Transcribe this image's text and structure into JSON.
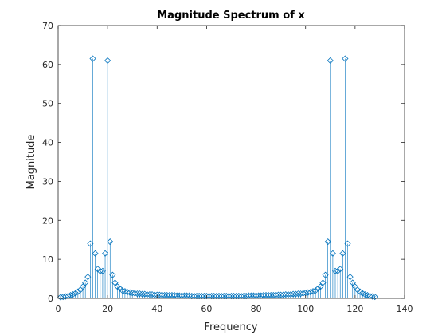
{
  "chart_data": {
    "type": "stem",
    "title": "Magnitude Spectrum of x",
    "xlabel": "Frequency",
    "ylabel": "Magnitude",
    "xlim": [
      0,
      140
    ],
    "ylim": [
      0,
      70
    ],
    "xticks": [
      0,
      20,
      40,
      60,
      80,
      100,
      120,
      140
    ],
    "yticks": [
      0,
      10,
      20,
      30,
      40,
      50,
      60,
      70
    ],
    "xtick_labels": [
      "0",
      "20",
      "40",
      "60",
      "80",
      "100",
      "120",
      "140"
    ],
    "ytick_labels": [
      "0",
      "10",
      "20",
      "30",
      "40",
      "50",
      "60",
      "70"
    ],
    "grid": false,
    "box": true,
    "marker": "diamond",
    "color": "#0072BD",
    "x": [
      1,
      2,
      3,
      4,
      5,
      6,
      7,
      8,
      9,
      10,
      11,
      12,
      13,
      14,
      15,
      16,
      17,
      18,
      19,
      20,
      21,
      22,
      23,
      24,
      25,
      26,
      27,
      28,
      29,
      30,
      31,
      32,
      33,
      34,
      35,
      36,
      37,
      38,
      39,
      40,
      41,
      42,
      43,
      44,
      45,
      46,
      47,
      48,
      49,
      50,
      51,
      52,
      53,
      54,
      55,
      56,
      57,
      58,
      59,
      60,
      61,
      62,
      63,
      64,
      65,
      66,
      67,
      68,
      69,
      70,
      71,
      72,
      73,
      74,
      75,
      76,
      77,
      78,
      79,
      80,
      81,
      82,
      83,
      84,
      85,
      86,
      87,
      88,
      89,
      90,
      91,
      92,
      93,
      94,
      95,
      96,
      97,
      98,
      99,
      100,
      101,
      102,
      103,
      104,
      105,
      106,
      107,
      108,
      109,
      110,
      111,
      112,
      113,
      114,
      115,
      116,
      117,
      118,
      119,
      120,
      121,
      122,
      123,
      124,
      125,
      126,
      127,
      128
    ],
    "values": [
      0.3,
      0.4,
      0.5,
      0.6,
      0.8,
      1.0,
      1.3,
      1.7,
      2.2,
      3.0,
      4.0,
      5.5,
      14.0,
      61.5,
      11.5,
      7.5,
      7.0,
      7.0,
      11.5,
      61.0,
      14.5,
      6.0,
      4.0,
      3.0,
      2.5,
      2.0,
      1.8,
      1.6,
      1.5,
      1.4,
      1.3,
      1.2,
      1.2,
      1.1,
      1.1,
      1.0,
      1.0,
      1.0,
      0.9,
      0.9,
      0.9,
      0.9,
      0.8,
      0.8,
      0.8,
      0.8,
      0.8,
      0.7,
      0.7,
      0.7,
      0.7,
      0.7,
      0.7,
      0.6,
      0.6,
      0.6,
      0.6,
      0.6,
      0.6,
      0.6,
      0.6,
      0.6,
      0.6,
      0.6,
      0.6,
      0.6,
      0.6,
      0.6,
      0.6,
      0.6,
      0.6,
      0.6,
      0.6,
      0.6,
      0.6,
      0.6,
      0.7,
      0.7,
      0.7,
      0.7,
      0.7,
      0.7,
      0.8,
      0.8,
      0.8,
      0.8,
      0.8,
      0.9,
      0.9,
      0.9,
      0.9,
      1.0,
      1.0,
      1.0,
      1.1,
      1.1,
      1.2,
      1.2,
      1.3,
      1.4,
      1.5,
      1.6,
      1.8,
      2.0,
      2.5,
      3.0,
      4.0,
      6.0,
      14.5,
      61.0,
      11.5,
      7.0,
      7.0,
      7.5,
      11.5,
      61.5,
      14.0,
      5.5,
      4.0,
      3.0,
      2.2,
      1.7,
      1.3,
      1.0,
      0.8,
      0.6,
      0.5,
      0.4
    ]
  }
}
